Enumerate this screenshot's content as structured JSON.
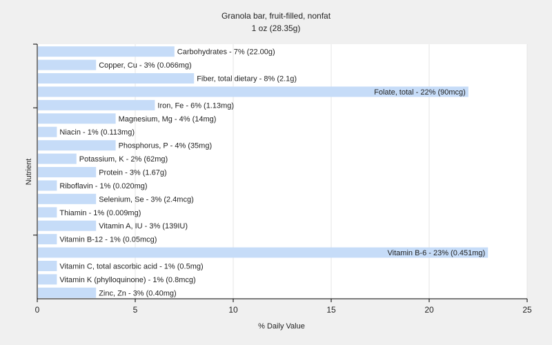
{
  "chart_data": {
    "type": "bar",
    "orientation": "horizontal",
    "title": "Granola bar, fruit-filled, nonfat",
    "subtitle": "1 oz (28.35g)",
    "xlabel": "% Daily Value",
    "ylabel": "Nutrient",
    "xlim": [
      0,
      25
    ],
    "xticks": [
      0,
      5,
      10,
      15,
      20,
      25
    ],
    "grid": true,
    "bar_color": "#c6dcf8",
    "categories": [
      "Carbohydrates",
      "Copper, Cu",
      "Fiber, total dietary",
      "Folate, total",
      "Iron, Fe",
      "Magnesium, Mg",
      "Niacin",
      "Phosphorus, P",
      "Potassium, K",
      "Protein",
      "Riboflavin",
      "Selenium, Se",
      "Thiamin",
      "Vitamin A, IU",
      "Vitamin B-12",
      "Vitamin B-6",
      "Vitamin C, total ascorbic acid",
      "Vitamin K (phylloquinone)",
      "Zinc, Zn"
    ],
    "values": [
      7,
      3,
      8,
      22,
      6,
      4,
      1,
      4,
      2,
      3,
      1,
      3,
      1,
      3,
      1,
      23,
      1,
      1,
      3
    ],
    "labels": [
      "Carbohydrates - 7% (22.00g)",
      "Copper, Cu - 3% (0.066mg)",
      "Fiber, total dietary - 8% (2.1g)",
      "Folate, total - 22% (90mcg)",
      "Iron, Fe - 6% (1.13mg)",
      "Magnesium, Mg - 4% (14mg)",
      "Niacin - 1% (0.113mg)",
      "Phosphorus, P - 4% (35mg)",
      "Potassium, K - 2% (62mg)",
      "Protein - 3% (1.67g)",
      "Riboflavin - 1% (0.020mg)",
      "Selenium, Se - 3% (2.4mcg)",
      "Thiamin - 1% (0.009mg)",
      "Vitamin A, IU - 3% (139IU)",
      "Vitamin B-12 - 1% (0.05mcg)",
      "Vitamin B-6 - 23% (0.451mg)",
      "Vitamin C, total ascorbic acid - 1% (0.5mg)",
      "Vitamin K (phylloquinone) - 1% (0.8mcg)",
      "Zinc, Zn - 3% (0.40mg)"
    ]
  }
}
